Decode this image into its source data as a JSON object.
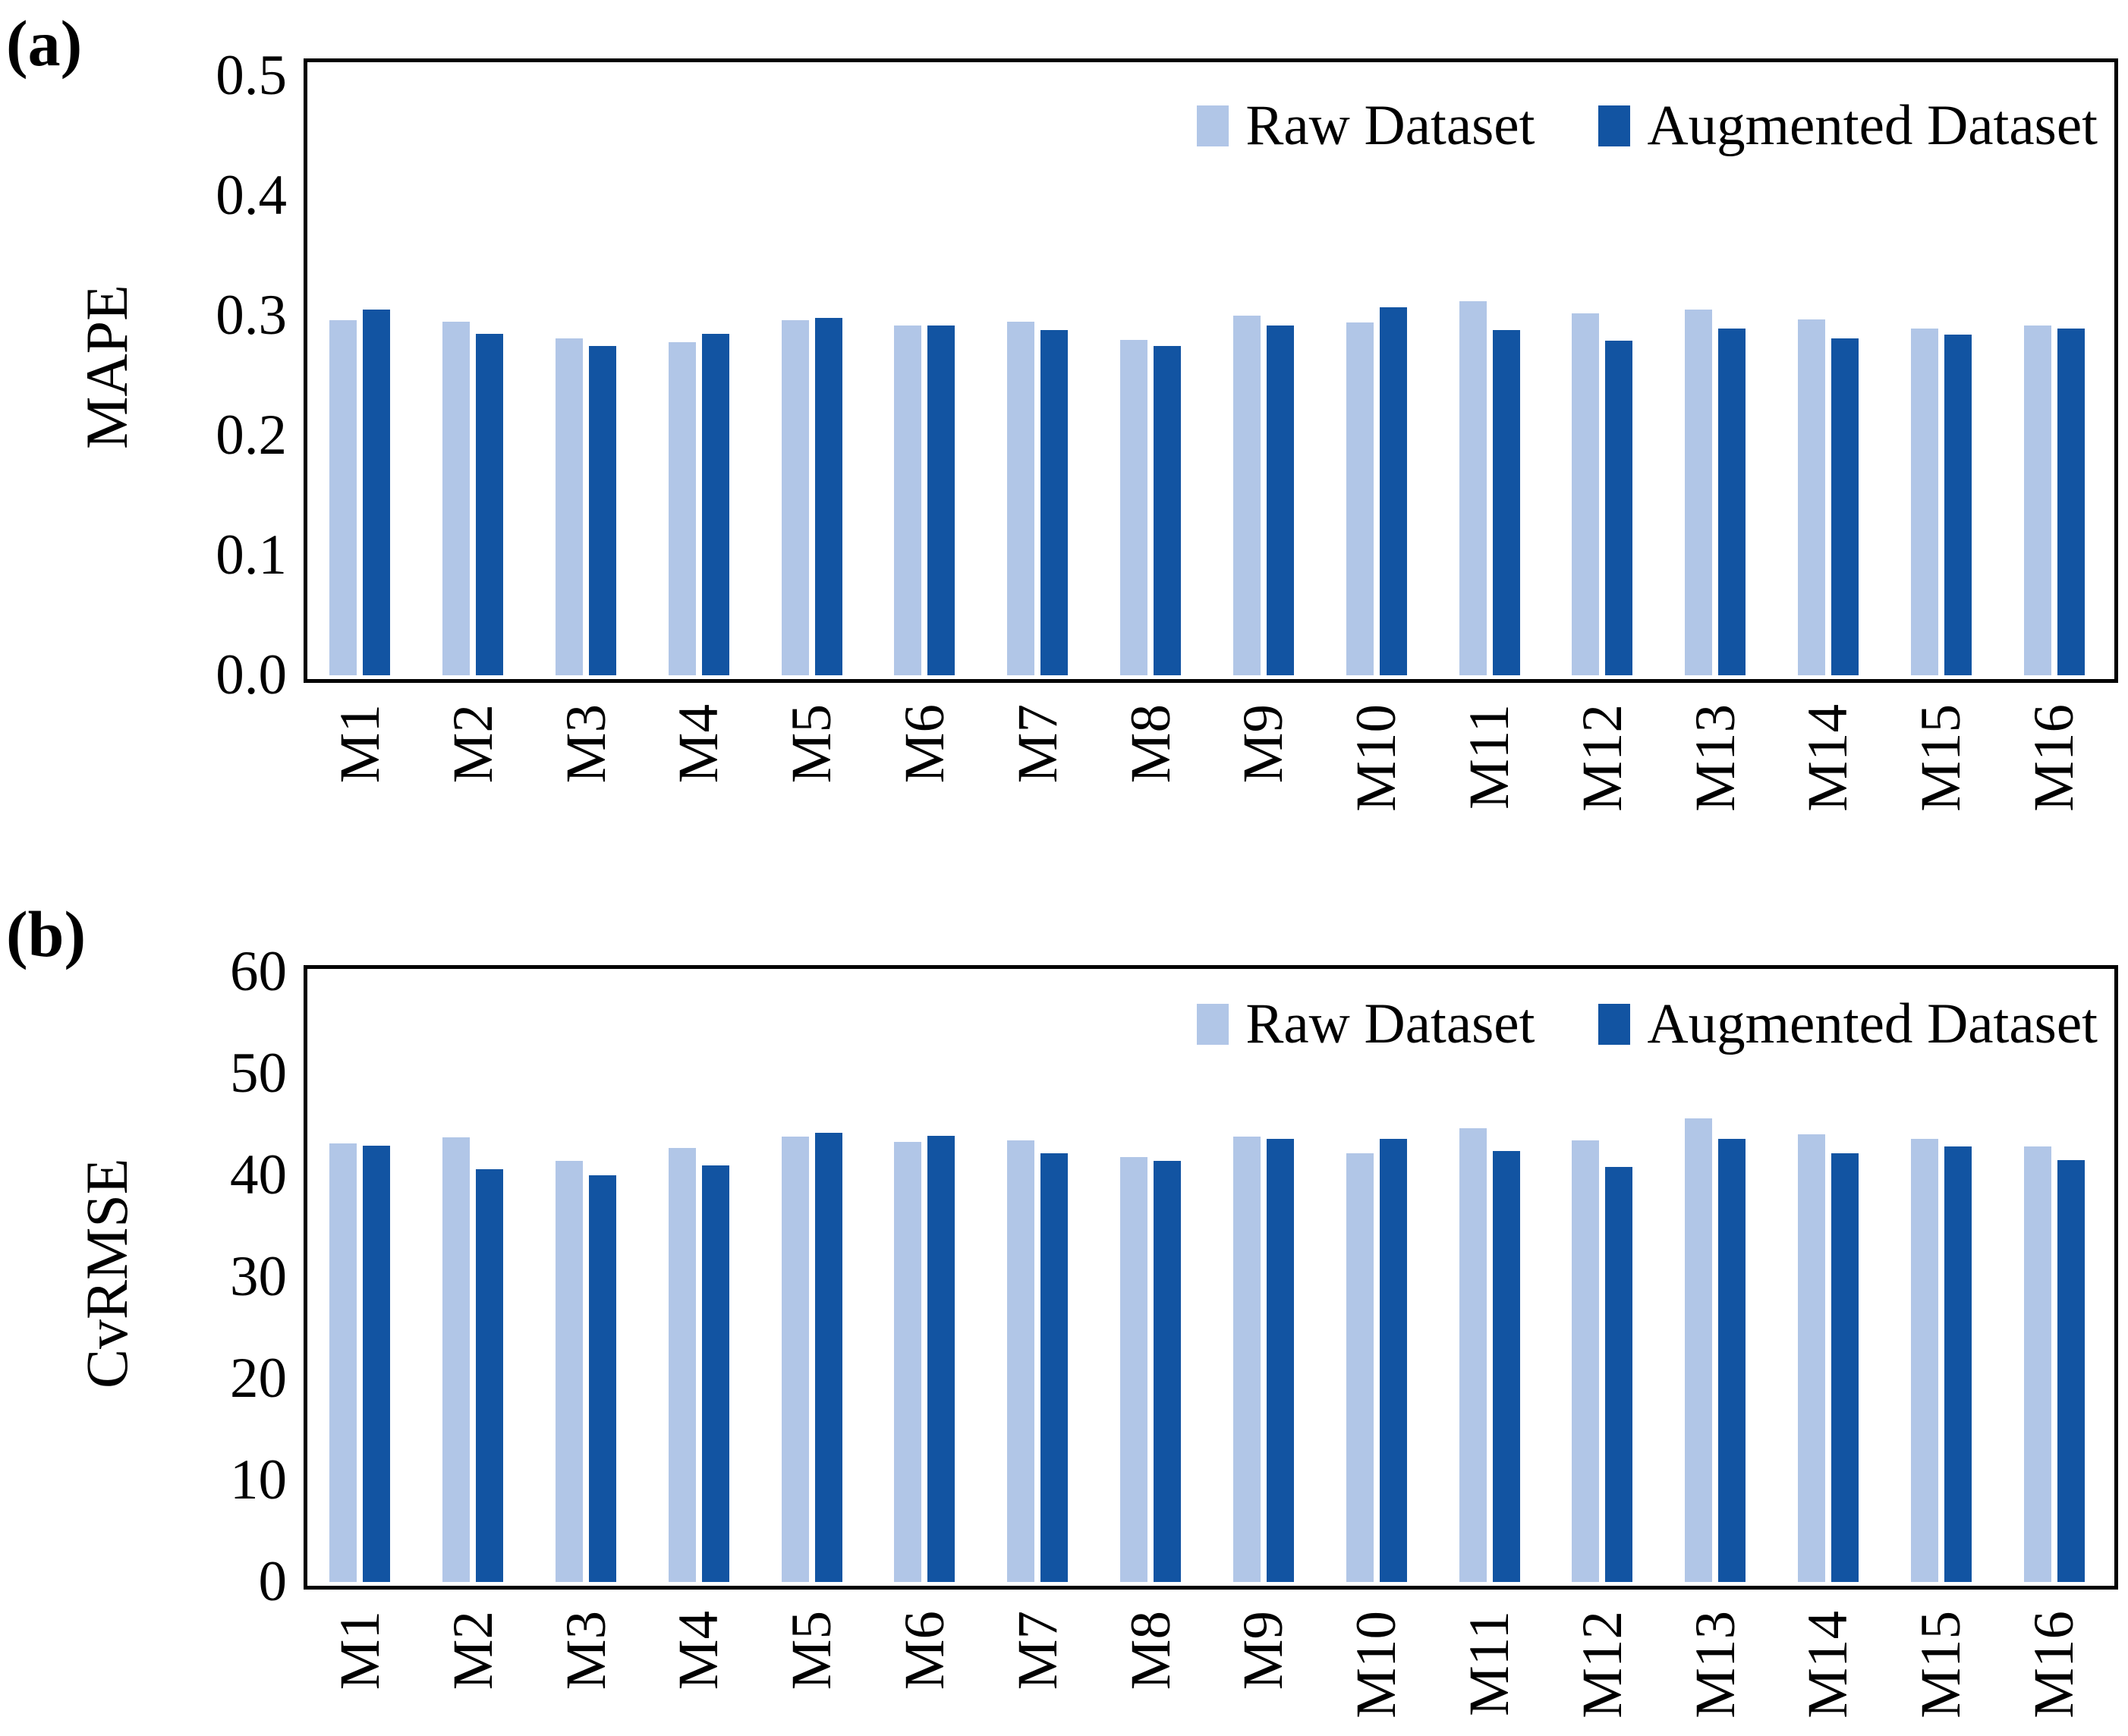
{
  "colors": {
    "raw": "#B1C6E7",
    "augmented": "#1254A2",
    "axis": "#000000"
  },
  "chart_data": [
    {
      "type": "bar",
      "panel_letter": "(a)",
      "ylabel": "MAPE",
      "xlabel": "",
      "ylim": [
        0,
        0.5
      ],
      "y_ticks": [
        "0.0",
        "0.1",
        "0.2",
        "0.3",
        "0.4",
        "0.5"
      ],
      "grid": false,
      "legend_position": "inside-top-right",
      "categories": [
        "M1",
        "M2",
        "M3",
        "M4",
        "M5",
        "M6",
        "M7",
        "M8",
        "M9",
        "M10",
        "M11",
        "M12",
        "M13",
        "M14",
        "M15",
        "M16"
      ],
      "series": [
        {
          "name": "Raw Dataset",
          "values": [
            0.296,
            0.295,
            0.281,
            0.278,
            0.296,
            0.292,
            0.295,
            0.28,
            0.3,
            0.294,
            0.312,
            0.302,
            0.305,
            0.297,
            0.289,
            0.292
          ]
        },
        {
          "name": "Augmented Dataset",
          "values": [
            0.305,
            0.285,
            0.275,
            0.285,
            0.298,
            0.292,
            0.288,
            0.275,
            0.292,
            0.307,
            0.288,
            0.279,
            0.289,
            0.281,
            0.284,
            0.289
          ]
        }
      ]
    },
    {
      "type": "bar",
      "panel_letter": "(b)",
      "ylabel": "CvRMSE",
      "xlabel": "",
      "ylim": [
        0,
        60
      ],
      "y_ticks": [
        "0",
        "10",
        "20",
        "30",
        "40",
        "50",
        "60"
      ],
      "grid": false,
      "legend_position": "inside-top-right",
      "categories": [
        "M1",
        "M2",
        "M3",
        "M4",
        "M5",
        "M6",
        "M7",
        "M8",
        "M9",
        "M10",
        "M11",
        "M12",
        "M13",
        "M14",
        "M15",
        "M16"
      ],
      "series": [
        {
          "name": "Raw Dataset",
          "values": [
            43.1,
            43.7,
            41.4,
            42.7,
            43.8,
            43.3,
            43.4,
            41.8,
            43.8,
            42.2,
            44.6,
            43.4,
            45.6,
            44.0,
            43.6,
            42.8
          ]
        },
        {
          "name": "Augmented Dataset",
          "values": [
            42.9,
            40.6,
            40.0,
            41.0,
            44.2,
            43.9,
            42.2,
            41.4,
            43.6,
            43.6,
            42.4,
            40.8,
            43.6,
            42.2,
            42.8,
            41.5
          ]
        }
      ]
    }
  ]
}
